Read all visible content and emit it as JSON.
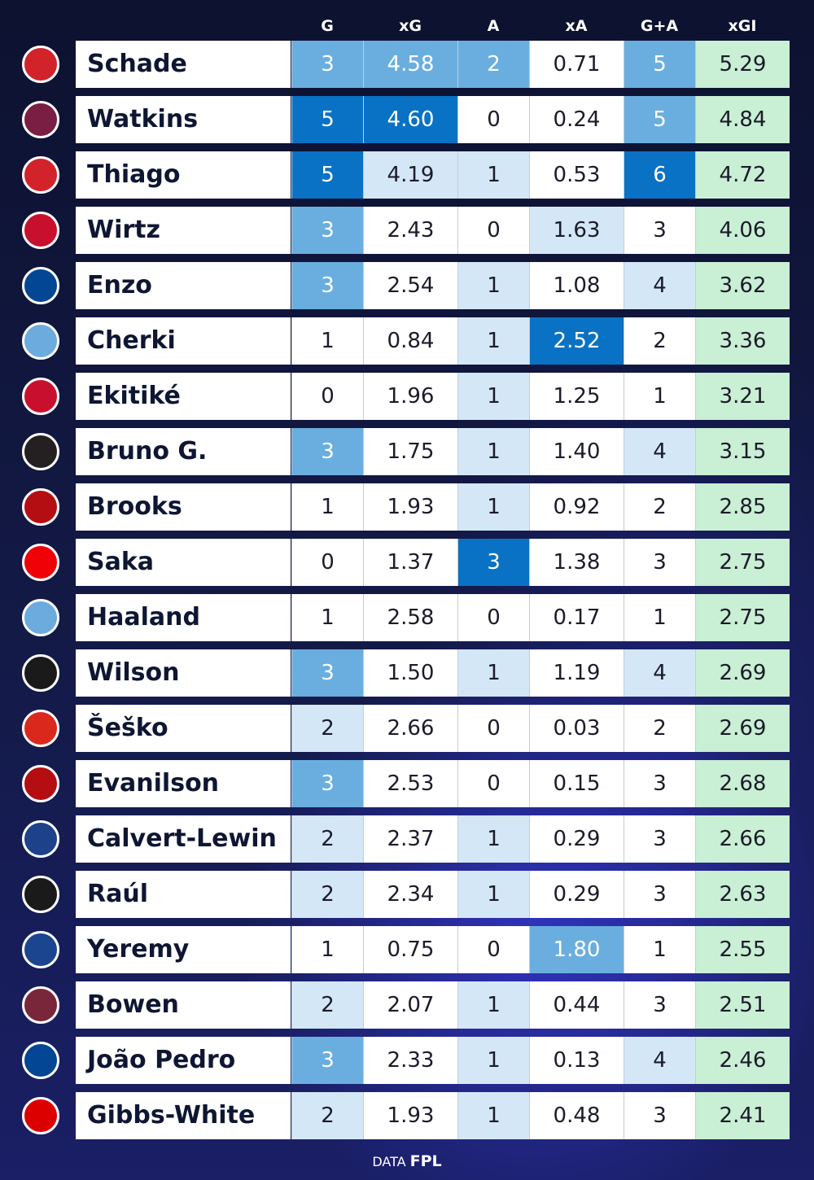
{
  "chart_data": {
    "type": "table",
    "columns": [
      "G",
      "xG",
      "A",
      "xA",
      "G+A",
      "xGI"
    ],
    "rows": [
      {
        "player": "Schade",
        "club_badge": "brentford-badge",
        "badge_color": "#d2232a",
        "values": [
          "3",
          "4.58",
          "2",
          "0.71",
          "5",
          "5.29"
        ],
        "shade": [
          2,
          2,
          2,
          0,
          2,
          9
        ]
      },
      {
        "player": "Watkins",
        "club_badge": "aston-villa-badge",
        "badge_color": "#7a1e44",
        "values": [
          "5",
          "4.60",
          "0",
          "0.24",
          "5",
          "4.84"
        ],
        "shade": [
          3,
          3,
          0,
          0,
          2,
          9
        ]
      },
      {
        "player": "Thiago",
        "club_badge": "brentford-badge",
        "badge_color": "#d2232a",
        "values": [
          "5",
          "4.19",
          "1",
          "0.53",
          "6",
          "4.72"
        ],
        "shade": [
          3,
          1,
          1,
          0,
          3,
          9
        ]
      },
      {
        "player": "Wirtz",
        "club_badge": "liverpool-badge",
        "badge_color": "#c8102e",
        "values": [
          "3",
          "2.43",
          "0",
          "1.63",
          "3",
          "4.06"
        ],
        "shade": [
          2,
          0,
          0,
          1,
          0,
          9
        ]
      },
      {
        "player": "Enzo",
        "club_badge": "chelsea-badge",
        "badge_color": "#034694",
        "values": [
          "3",
          "2.54",
          "1",
          "1.08",
          "4",
          "3.62"
        ],
        "shade": [
          2,
          0,
          1,
          0,
          1,
          9
        ]
      },
      {
        "player": "Cherki",
        "club_badge": "man-city-badge",
        "badge_color": "#6cabdd",
        "values": [
          "1",
          "0.84",
          "1",
          "2.52",
          "2",
          "3.36"
        ],
        "shade": [
          0,
          0,
          1,
          3,
          0,
          9
        ]
      },
      {
        "player": "Ekitiké",
        "club_badge": "liverpool-badge",
        "badge_color": "#c8102e",
        "values": [
          "0",
          "1.96",
          "1",
          "1.25",
          "1",
          "3.21"
        ],
        "shade": [
          0,
          0,
          1,
          0,
          0,
          9
        ]
      },
      {
        "player": "Bruno G.",
        "club_badge": "newcastle-badge",
        "badge_color": "#241f20",
        "values": [
          "3",
          "1.75",
          "1",
          "1.40",
          "4",
          "3.15"
        ],
        "shade": [
          2,
          0,
          1,
          0,
          1,
          9
        ]
      },
      {
        "player": "Brooks",
        "club_badge": "bournemouth-badge",
        "badge_color": "#b50e12",
        "values": [
          "1",
          "1.93",
          "1",
          "0.92",
          "2",
          "2.85"
        ],
        "shade": [
          0,
          0,
          1,
          0,
          0,
          9
        ]
      },
      {
        "player": "Saka",
        "club_badge": "arsenal-badge",
        "badge_color": "#ef0107",
        "values": [
          "0",
          "1.37",
          "3",
          "1.38",
          "3",
          "2.75"
        ],
        "shade": [
          0,
          0,
          3,
          0,
          0,
          9
        ]
      },
      {
        "player": "Haaland",
        "club_badge": "man-city-badge",
        "badge_color": "#6cabdd",
        "values": [
          "1",
          "2.58",
          "0",
          "0.17",
          "1",
          "2.75"
        ],
        "shade": [
          0,
          0,
          0,
          0,
          0,
          9
        ]
      },
      {
        "player": "Wilson",
        "club_badge": "fulham-badge",
        "badge_color": "#1a1a1a",
        "values": [
          "3",
          "1.50",
          "1",
          "1.19",
          "4",
          "2.69"
        ],
        "shade": [
          2,
          0,
          1,
          0,
          1,
          9
        ]
      },
      {
        "player": "Šeško",
        "club_badge": "man-united-badge",
        "badge_color": "#da291c",
        "values": [
          "2",
          "2.66",
          "0",
          "0.03",
          "2",
          "2.69"
        ],
        "shade": [
          1,
          0,
          0,
          0,
          0,
          9
        ]
      },
      {
        "player": "Evanilson",
        "club_badge": "bournemouth-badge",
        "badge_color": "#b50e12",
        "values": [
          "3",
          "2.53",
          "0",
          "0.15",
          "3",
          "2.68"
        ],
        "shade": [
          2,
          0,
          0,
          0,
          0,
          9
        ]
      },
      {
        "player": "Calvert-Lewin",
        "club_badge": "leeds-badge",
        "badge_color": "#1d428a",
        "values": [
          "2",
          "2.37",
          "1",
          "0.29",
          "3",
          "2.66"
        ],
        "shade": [
          1,
          0,
          1,
          0,
          0,
          9
        ]
      },
      {
        "player": "Raúl",
        "club_badge": "fulham-badge",
        "badge_color": "#1a1a1a",
        "values": [
          "2",
          "2.34",
          "1",
          "0.29",
          "3",
          "2.63"
        ],
        "shade": [
          1,
          0,
          1,
          0,
          0,
          9
        ]
      },
      {
        "player": "Yeremy",
        "club_badge": "crystal-palace-badge",
        "badge_color": "#1b458f",
        "values": [
          "1",
          "0.75",
          "0",
          "1.80",
          "1",
          "2.55"
        ],
        "shade": [
          0,
          0,
          0,
          2,
          0,
          9
        ]
      },
      {
        "player": "Bowen",
        "club_badge": "west-ham-badge",
        "badge_color": "#7a263a",
        "values": [
          "2",
          "2.07",
          "1",
          "0.44",
          "3",
          "2.51"
        ],
        "shade": [
          1,
          0,
          1,
          0,
          0,
          9
        ]
      },
      {
        "player": "João Pedro",
        "club_badge": "chelsea-badge",
        "badge_color": "#034694",
        "values": [
          "3",
          "2.33",
          "1",
          "0.13",
          "4",
          "2.46"
        ],
        "shade": [
          2,
          0,
          1,
          0,
          1,
          9
        ]
      },
      {
        "player": "Gibbs-White",
        "club_badge": "nottingham-forest-badge",
        "badge_color": "#dd0000",
        "values": [
          "2",
          "1.93",
          "1",
          "0.48",
          "3",
          "2.41"
        ],
        "shade": [
          1,
          0,
          1,
          0,
          0,
          9
        ]
      }
    ],
    "shade_colors": {
      "0": "#ffffff",
      "1": "#d4e7f6",
      "2": "#6aaee0",
      "3": "#0a72c4",
      "9": "#c9efd4"
    },
    "shade_text_colors": {
      "0": "#1b1b2a",
      "1": "#1b1b2a",
      "2": "#ffffff",
      "3": "#ffffff",
      "9": "#1b1b2a"
    }
  },
  "footer": {
    "prefix": "DATA",
    "source": "FPL"
  }
}
